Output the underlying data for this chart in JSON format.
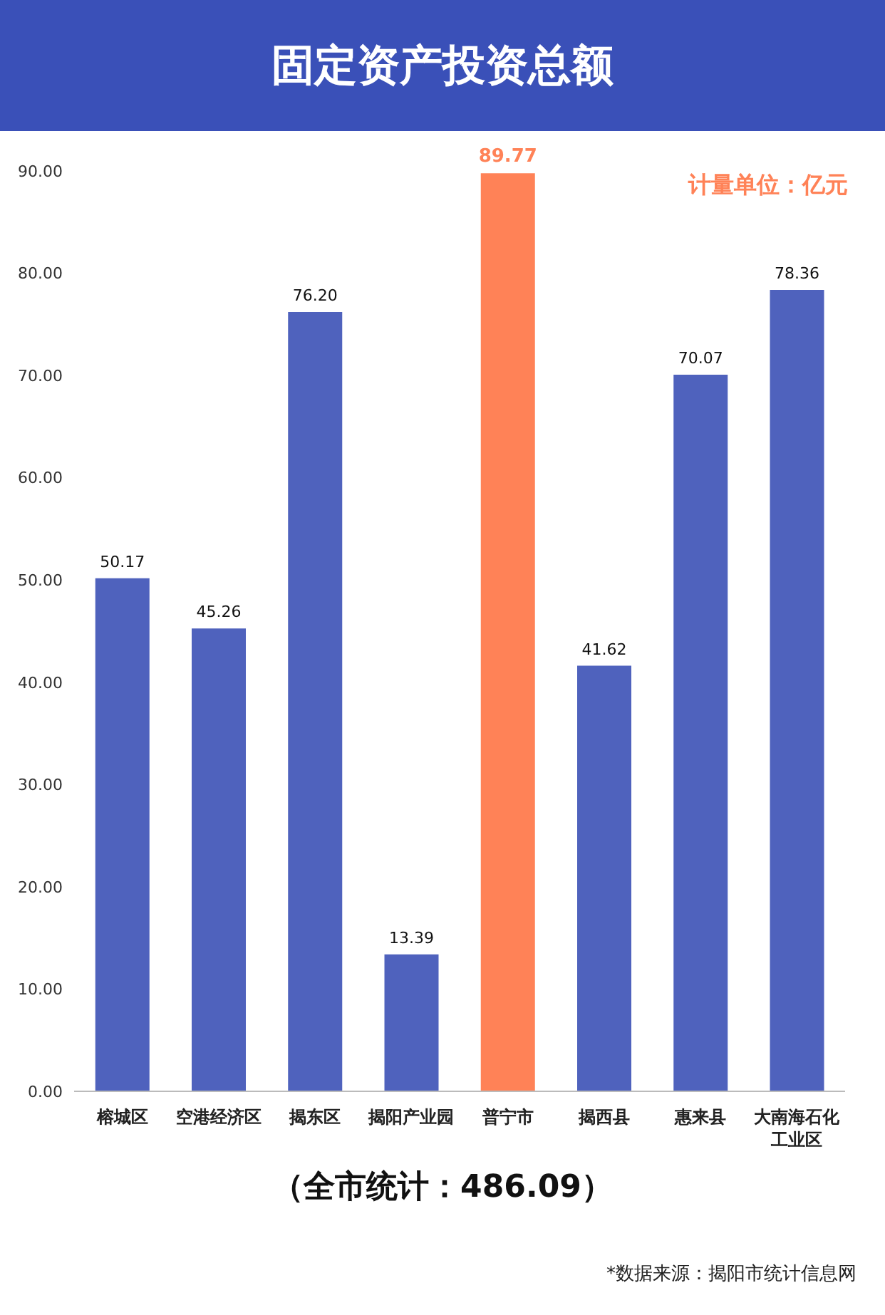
{
  "chart_data": {
    "type": "bar",
    "title": "固定资产投资总额",
    "categories": [
      "榕城区",
      "空港经济区",
      "揭东区",
      "揭阳产业园",
      "普宁市",
      "揭西县",
      "惠来县",
      "大南海石化工业区"
    ],
    "values": [
      50.17,
      45.26,
      76.2,
      13.39,
      89.77,
      41.62,
      70.07,
      78.36
    ],
    "value_labels": [
      "50.17",
      "45.26",
      "76.20",
      "13.39",
      "89.77",
      "41.62",
      "70.07",
      "78.36"
    ],
    "color": "#4f62bd",
    "colors": [
      "#4f62bd",
      "#4f62bd",
      "#4f62bd",
      "#4f62bd",
      "#ff8257",
      "#4f62bd",
      "#4f62bd",
      "#4f62bd"
    ],
    "ylim": [
      0,
      90
    ],
    "yticks": [
      {
        "value": 0,
        "label": "0.00"
      },
      {
        "value": 10,
        "label": "10.00"
      },
      {
        "value": 20,
        "label": "20.00"
      },
      {
        "value": 30,
        "label": "30.00"
      },
      {
        "value": 40,
        "label": "40.00"
      },
      {
        "value": 50,
        "label": "50.00"
      },
      {
        "value": 60,
        "label": "60.00"
      },
      {
        "value": 70,
        "label": "70.00"
      },
      {
        "value": 80,
        "label": "80.00"
      },
      {
        "value": 90,
        "label": "90.00"
      }
    ],
    "grid": false,
    "legend": false,
    "annotations": [
      "计量单位：亿元",
      "（全市统计：486.09）",
      "*数据来源：揭阳市统计信息网"
    ]
  }
}
